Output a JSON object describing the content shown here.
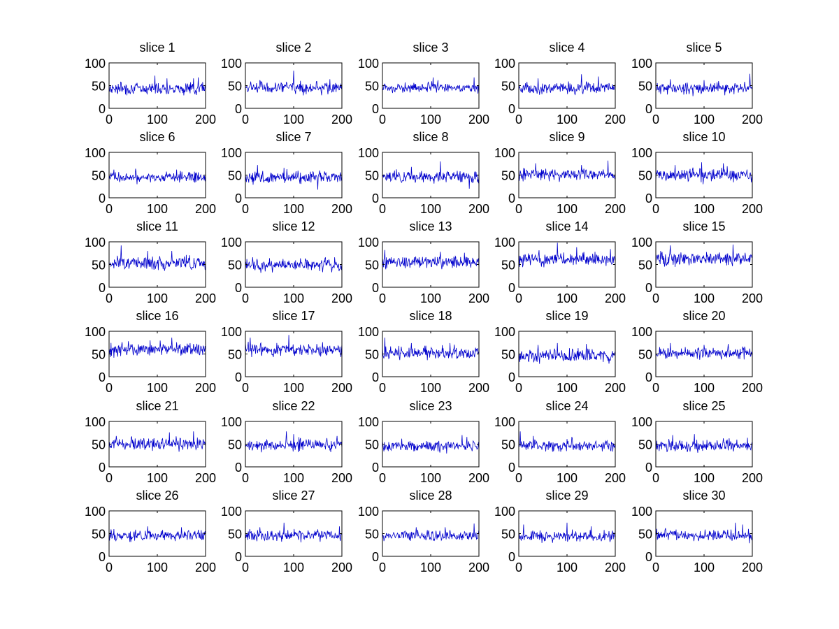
{
  "colors": {
    "line": "#0000cc",
    "axes": "#000000",
    "background": "#ffffff"
  },
  "chart_data": [
    {
      "type": "line",
      "title": "slice 1",
      "x_range": [
        0,
        200
      ],
      "ylim": [
        0,
        100
      ],
      "xticks": [
        "0",
        "100",
        "200"
      ],
      "yticks": [
        "0",
        "50",
        "100"
      ],
      "base": 44,
      "amplitude": 9,
      "peaks": [
        [
          95,
          72
        ],
        [
          120,
          66
        ],
        [
          175,
          66
        ],
        [
          185,
          68
        ]
      ]
    },
    {
      "type": "line",
      "title": "slice 2",
      "x_range": [
        0,
        200
      ],
      "ylim": [
        0,
        100
      ],
      "xticks": [
        "0",
        "100",
        "200"
      ],
      "yticks": [
        "0",
        "50",
        "100"
      ],
      "base": 45,
      "amplitude": 9,
      "peaks": [
        [
          100,
          83
        ],
        [
          30,
          62
        ],
        [
          175,
          64
        ]
      ]
    },
    {
      "type": "line",
      "title": "slice 3",
      "x_range": [
        0,
        200
      ],
      "ylim": [
        0,
        100
      ],
      "xticks": [
        "0",
        "100",
        "200"
      ],
      "yticks": [
        "0",
        "50",
        "100"
      ],
      "base": 45,
      "amplitude": 8,
      "peaks": [
        [
          105,
          68
        ],
        [
          115,
          62
        ],
        [
          190,
          68
        ]
      ]
    },
    {
      "type": "line",
      "title": "slice 4",
      "x_range": [
        0,
        200
      ],
      "ylim": [
        0,
        100
      ],
      "xticks": [
        "0",
        "100",
        "200"
      ],
      "yticks": [
        "0",
        "50",
        "100"
      ],
      "base": 44,
      "amplitude": 9,
      "peaks": [
        [
          130,
          75
        ],
        [
          40,
          66
        ],
        [
          165,
          70
        ]
      ]
    },
    {
      "type": "line",
      "title": "slice 5",
      "x_range": [
        0,
        200
      ],
      "ylim": [
        0,
        100
      ],
      "xticks": [
        "0",
        "100",
        "200"
      ],
      "yticks": [
        "0",
        "50",
        "100"
      ],
      "base": 44,
      "amplitude": 9,
      "peaks": [
        [
          195,
          76
        ],
        [
          30,
          64
        ],
        [
          100,
          62
        ]
      ]
    },
    {
      "type": "line",
      "title": "slice 6",
      "x_range": [
        0,
        200
      ],
      "ylim": [
        0,
        100
      ],
      "xticks": [
        "0",
        "100",
        "200"
      ],
      "yticks": [
        "0",
        "50",
        "100"
      ],
      "base": 45,
      "amplitude": 8,
      "peaks": [
        [
          10,
          62
        ],
        [
          55,
          64
        ],
        [
          140,
          62
        ]
      ]
    },
    {
      "type": "line",
      "title": "slice 7",
      "x_range": [
        0,
        200
      ],
      "ylim": [
        0,
        100
      ],
      "xticks": [
        "0",
        "100",
        "200"
      ],
      "yticks": [
        "0",
        "50",
        "100"
      ],
      "base": 45,
      "amplitude": 10,
      "peaks": [
        [
          25,
          72
        ],
        [
          80,
          66
        ],
        [
          150,
          18
        ]
      ]
    },
    {
      "type": "line",
      "title": "slice 8",
      "x_range": [
        0,
        200
      ],
      "ylim": [
        0,
        100
      ],
      "xticks": [
        "0",
        "100",
        "200"
      ],
      "yticks": [
        "0",
        "50",
        "100"
      ],
      "base": 46,
      "amplitude": 9,
      "peaks": [
        [
          120,
          80
        ],
        [
          180,
          20
        ],
        [
          60,
          68
        ]
      ]
    },
    {
      "type": "line",
      "title": "slice 9",
      "x_range": [
        0,
        200
      ],
      "ylim": [
        0,
        100
      ],
      "xticks": [
        "0",
        "100",
        "200"
      ],
      "yticks": [
        "0",
        "50",
        "100"
      ],
      "base": 52,
      "amplitude": 9,
      "peaks": [
        [
          35,
          76
        ],
        [
          185,
          82
        ],
        [
          130,
          72
        ]
      ]
    },
    {
      "type": "line",
      "title": "slice 10",
      "x_range": [
        0,
        200
      ],
      "ylim": [
        0,
        100
      ],
      "xticks": [
        "0",
        "100",
        "200"
      ],
      "yticks": [
        "0",
        "50",
        "100"
      ],
      "base": 50,
      "amplitude": 10,
      "peaks": [
        [
          95,
          78
        ],
        [
          140,
          76
        ],
        [
          40,
          72
        ]
      ]
    },
    {
      "type": "line",
      "title": "slice 11",
      "x_range": [
        0,
        200
      ],
      "ylim": [
        0,
        100
      ],
      "xticks": [
        "0",
        "100",
        "200"
      ],
      "yticks": [
        "0",
        "50",
        "100"
      ],
      "base": 54,
      "amplitude": 10,
      "peaks": [
        [
          25,
          92
        ],
        [
          80,
          80
        ],
        [
          130,
          80
        ]
      ]
    },
    {
      "type": "line",
      "title": "slice 12",
      "x_range": [
        0,
        200
      ],
      "ylim": [
        0,
        100
      ],
      "xticks": [
        "0",
        "100",
        "200"
      ],
      "yticks": [
        "0",
        "50",
        "100"
      ],
      "base": 48,
      "amplitude": 9,
      "peaks": [
        [
          15,
          66
        ],
        [
          50,
          64
        ],
        [
          185,
          66
        ]
      ]
    },
    {
      "type": "line",
      "title": "slice 13",
      "x_range": [
        0,
        200
      ],
      "ylim": [
        0,
        100
      ],
      "xticks": [
        "0",
        "100",
        "200"
      ],
      "yticks": [
        "0",
        "50",
        "100"
      ],
      "base": 56,
      "amplitude": 10,
      "peaks": [
        [
          5,
          82
        ],
        [
          120,
          78
        ],
        [
          170,
          76
        ]
      ]
    },
    {
      "type": "line",
      "title": "slice 14",
      "x_range": [
        0,
        200
      ],
      "ylim": [
        0,
        100
      ],
      "xticks": [
        "0",
        "100",
        "200"
      ],
      "yticks": [
        "0",
        "50",
        "100"
      ],
      "base": 62,
      "amplitude": 10,
      "peaks": [
        [
          80,
          98
        ],
        [
          120,
          88
        ],
        [
          190,
          84
        ]
      ]
    },
    {
      "type": "line",
      "title": "slice 15",
      "x_range": [
        0,
        200
      ],
      "ylim": [
        0,
        100
      ],
      "xticks": [
        "0",
        "100",
        "200"
      ],
      "yticks": [
        "0",
        "50",
        "100"
      ],
      "base": 62,
      "amplitude": 10,
      "peaks": [
        [
          30,
          92
        ],
        [
          160,
          94
        ],
        [
          10,
          80
        ]
      ]
    },
    {
      "type": "line",
      "title": "slice 16",
      "x_range": [
        0,
        200
      ],
      "ylim": [
        0,
        100
      ],
      "xticks": [
        "0",
        "100",
        "200"
      ],
      "yticks": [
        "0",
        "50",
        "100"
      ],
      "base": 60,
      "amplitude": 10,
      "peaks": [
        [
          130,
          86
        ],
        [
          85,
          80
        ],
        [
          40,
          78
        ]
      ]
    },
    {
      "type": "line",
      "title": "slice 17",
      "x_range": [
        0,
        200
      ],
      "ylim": [
        0,
        100
      ],
      "xticks": [
        "0",
        "100",
        "200"
      ],
      "yticks": [
        "0",
        "50",
        "100"
      ],
      "base": 60,
      "amplitude": 10,
      "peaks": [
        [
          90,
          92
        ],
        [
          10,
          86
        ],
        [
          160,
          76
        ]
      ]
    },
    {
      "type": "line",
      "title": "slice 18",
      "x_range": [
        0,
        200
      ],
      "ylim": [
        0,
        100
      ],
      "xticks": [
        "0",
        "100",
        "200"
      ],
      "yticks": [
        "0",
        "50",
        "100"
      ],
      "base": 52,
      "amplitude": 10,
      "peaks": [
        [
          5,
          86
        ],
        [
          60,
          74
        ],
        [
          140,
          74
        ]
      ]
    },
    {
      "type": "line",
      "title": "slice 19",
      "x_range": [
        0,
        200
      ],
      "ylim": [
        0,
        100
      ],
      "xticks": [
        "0",
        "100",
        "200"
      ],
      "yticks": [
        "0",
        "50",
        "100"
      ],
      "base": 46,
      "amplitude": 10,
      "peaks": [
        [
          80,
          74
        ],
        [
          140,
          72
        ],
        [
          40,
          70
        ]
      ]
    },
    {
      "type": "line",
      "title": "slice 20",
      "x_range": [
        0,
        200
      ],
      "ylim": [
        0,
        100
      ],
      "xticks": [
        "0",
        "100",
        "200"
      ],
      "yticks": [
        "0",
        "50",
        "100"
      ],
      "base": 52,
      "amplitude": 9,
      "peaks": [
        [
          30,
          74
        ],
        [
          150,
          72
        ],
        [
          100,
          70
        ]
      ]
    },
    {
      "type": "line",
      "title": "slice 21",
      "x_range": [
        0,
        200
      ],
      "ylim": [
        0,
        100
      ],
      "xticks": [
        "0",
        "100",
        "200"
      ],
      "yticks": [
        "0",
        "50",
        "100"
      ],
      "base": 50,
      "amplitude": 9,
      "peaks": [
        [
          125,
          76
        ],
        [
          175,
          78
        ],
        [
          15,
          68
        ]
      ]
    },
    {
      "type": "line",
      "title": "slice 22",
      "x_range": [
        0,
        200
      ],
      "ylim": [
        0,
        100
      ],
      "xticks": [
        "0",
        "100",
        "200"
      ],
      "yticks": [
        "0",
        "50",
        "100"
      ],
      "base": 48,
      "amplitude": 9,
      "peaks": [
        [
          85,
          78
        ],
        [
          100,
          72
        ],
        [
          190,
          68
        ]
      ]
    },
    {
      "type": "line",
      "title": "slice 23",
      "x_range": [
        0,
        200
      ],
      "ylim": [
        0,
        100
      ],
      "xticks": [
        "0",
        "100",
        "200"
      ],
      "yticks": [
        "0",
        "50",
        "100"
      ],
      "base": 45,
      "amplitude": 8,
      "peaks": [
        [
          165,
          70
        ],
        [
          175,
          66
        ],
        [
          40,
          62
        ]
      ]
    },
    {
      "type": "line",
      "title": "slice 24",
      "x_range": [
        0,
        200
      ],
      "ylim": [
        0,
        100
      ],
      "xticks": [
        "0",
        "100",
        "200"
      ],
      "yticks": [
        "0",
        "50",
        "100"
      ],
      "base": 46,
      "amplitude": 9,
      "peaks": [
        [
          3,
          78
        ],
        [
          30,
          68
        ],
        [
          110,
          66
        ]
      ]
    },
    {
      "type": "line",
      "title": "slice 25",
      "x_range": [
        0,
        200
      ],
      "ylim": [
        0,
        100
      ],
      "xticks": [
        "0",
        "100",
        "200"
      ],
      "yticks": [
        "0",
        "50",
        "100"
      ],
      "base": 46,
      "amplitude": 9,
      "peaks": [
        [
          80,
          72
        ],
        [
          35,
          70
        ],
        [
          190,
          64
        ]
      ]
    },
    {
      "type": "line",
      "title": "slice 26",
      "x_range": [
        0,
        200
      ],
      "ylim": [
        0,
        100
      ],
      "xticks": [
        "0",
        "100",
        "200"
      ],
      "yticks": [
        "0",
        "50",
        "100"
      ],
      "base": 46,
      "amplitude": 8,
      "peaks": [
        [
          80,
          66
        ],
        [
          150,
          64
        ],
        [
          10,
          60
        ]
      ]
    },
    {
      "type": "line",
      "title": "slice 27",
      "x_range": [
        0,
        200
      ],
      "ylim": [
        0,
        100
      ],
      "xticks": [
        "0",
        "100",
        "200"
      ],
      "yticks": [
        "0",
        "50",
        "100"
      ],
      "base": 46,
      "amplitude": 9,
      "peaks": [
        [
          80,
          74
        ],
        [
          195,
          66
        ],
        [
          30,
          64
        ]
      ]
    },
    {
      "type": "line",
      "title": "slice 28",
      "x_range": [
        0,
        200
      ],
      "ylim": [
        0,
        100
      ],
      "xticks": [
        "0",
        "100",
        "200"
      ],
      "yticks": [
        "0",
        "50",
        "100"
      ],
      "base": 46,
      "amplitude": 8,
      "peaks": [
        [
          190,
          72
        ],
        [
          70,
          64
        ],
        [
          130,
          64
        ]
      ]
    },
    {
      "type": "line",
      "title": "slice 29",
      "x_range": [
        0,
        200
      ],
      "ylim": [
        0,
        100
      ],
      "xticks": [
        "0",
        "100",
        "200"
      ],
      "yticks": [
        "0",
        "50",
        "100"
      ],
      "base": 44,
      "amplitude": 8,
      "peaks": [
        [
          100,
          74
        ],
        [
          10,
          70
        ],
        [
          150,
          66
        ]
      ]
    },
    {
      "type": "line",
      "title": "slice 30",
      "x_range": [
        0,
        200
      ],
      "ylim": [
        0,
        100
      ],
      "xticks": [
        "0",
        "100",
        "200"
      ],
      "yticks": [
        "0",
        "50",
        "100"
      ],
      "base": 46,
      "amplitude": 9,
      "peaks": [
        [
          165,
          74
        ],
        [
          180,
          70
        ],
        [
          20,
          62
        ]
      ]
    }
  ]
}
